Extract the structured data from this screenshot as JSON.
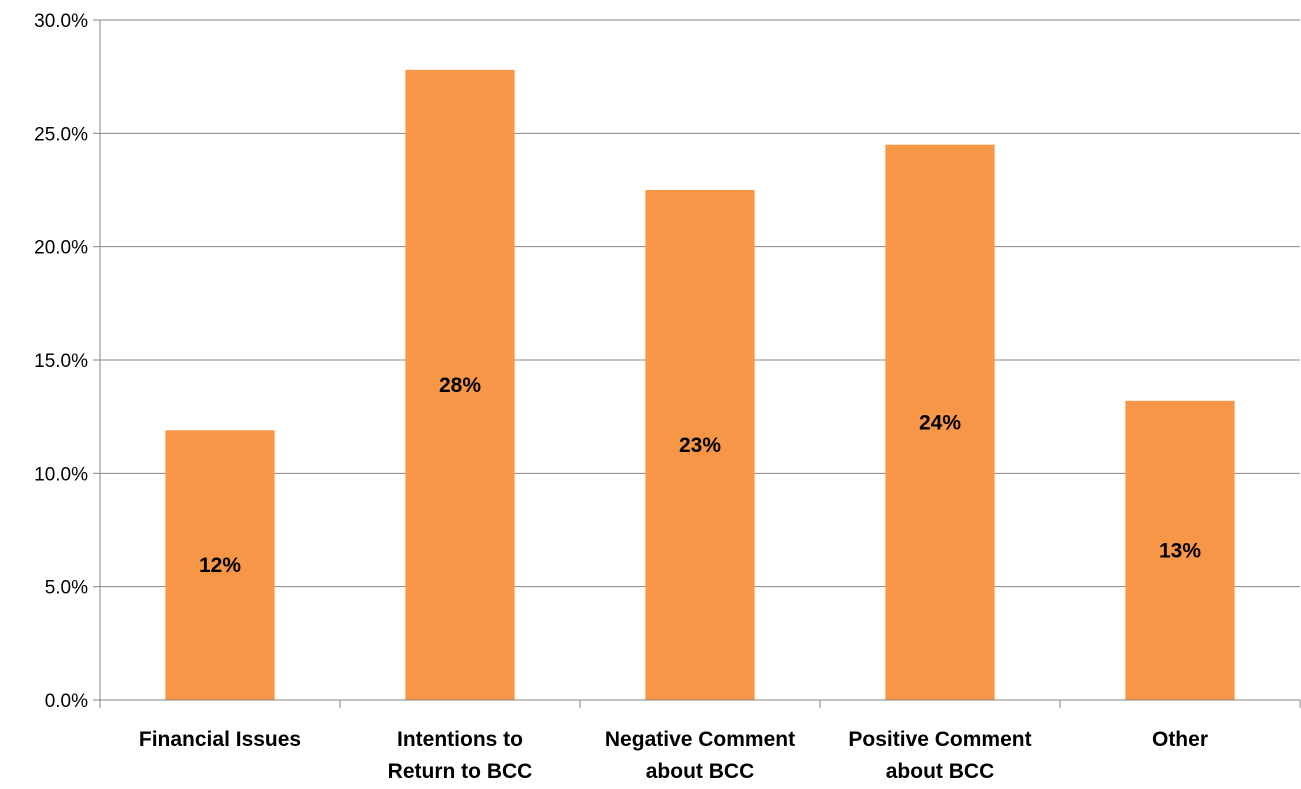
{
  "chart_data": {
    "type": "bar",
    "title": "",
    "xlabel": "",
    "ylabel": "",
    "categories": [
      [
        "Financial Issues"
      ],
      [
        "Intentions to",
        "Return to BCC"
      ],
      [
        "Negative Comment",
        "about BCC"
      ],
      [
        "Positive Comment",
        "about BCC"
      ],
      [
        "Other"
      ]
    ],
    "values": [
      11.9,
      27.8,
      22.5,
      24.5,
      13.2
    ],
    "data_labels": [
      "12%",
      "28%",
      "23%",
      "24%",
      "13%"
    ],
    "ylim": [
      0,
      30
    ],
    "yticks": [
      0,
      5,
      10,
      15,
      20,
      25,
      30
    ],
    "ytick_labels": [
      "0.0%",
      "5.0%",
      "10.0%",
      "15.0%",
      "20.0%",
      "25.0%",
      "30.0%"
    ],
    "grid": true,
    "legend": "none",
    "bar_color": "#F79646",
    "grid_color": "#868686"
  }
}
